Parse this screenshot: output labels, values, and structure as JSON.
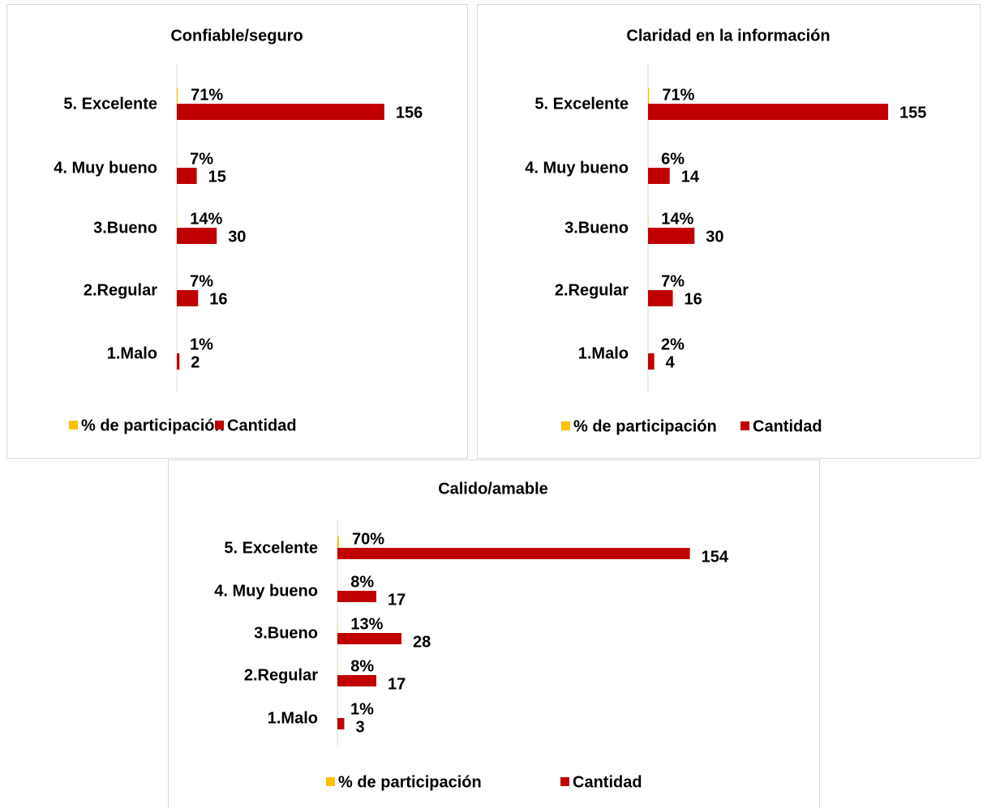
{
  "chart_data": [
    {
      "type": "bar",
      "orientation": "horizontal",
      "title": "Confiable/seguro",
      "categories": [
        "5. Excelente",
        "4. Muy bueno",
        "3.Bueno",
        "2.Regular",
        "1.Malo"
      ],
      "xlim": [
        0,
        200
      ],
      "series": [
        {
          "name": "% de participación",
          "color": "#ffc000",
          "values": [
            0.71,
            0.07,
            0.14,
            0.07,
            0.01
          ],
          "value_labels": [
            "71%",
            "7%",
            "14%",
            "7%",
            "1%"
          ]
        },
        {
          "name": "Cantidad",
          "color": "#c00000",
          "values": [
            156,
            15,
            30,
            16,
            2
          ]
        }
      ]
    },
    {
      "type": "bar",
      "orientation": "horizontal",
      "title": "Claridad en la información",
      "categories": [
        "5. Excelente",
        "4. Muy bueno",
        "3.Bueno",
        "2.Regular",
        "1.Malo"
      ],
      "xlim": [
        0,
        200
      ],
      "series": [
        {
          "name": "% de participación",
          "color": "#ffc000",
          "values": [
            0.71,
            0.06,
            0.14,
            0.07,
            0.02
          ],
          "value_labels": [
            "71%",
            "6%",
            "14%",
            "7%",
            "2%"
          ]
        },
        {
          "name": "Cantidad",
          "color": "#c00000",
          "values": [
            155,
            14,
            30,
            16,
            4
          ]
        }
      ]
    },
    {
      "type": "bar",
      "orientation": "horizontal",
      "title": "Calido/amable",
      "categories": [
        "5. Excelente",
        "4. Muy bueno",
        "3.Bueno",
        "2.Regular",
        "1.Malo"
      ],
      "xlim": [
        0,
        180
      ],
      "series": [
        {
          "name": "% de participación",
          "color": "#ffc000",
          "values": [
            0.7,
            0.08,
            0.13,
            0.08,
            0.01
          ],
          "value_labels": [
            "70%",
            "8%",
            "13%",
            "8%",
            "1%"
          ]
        },
        {
          "name": "Cantidad",
          "color": "#c00000",
          "values": [
            154,
            17,
            28,
            17,
            3
          ]
        }
      ]
    }
  ]
}
